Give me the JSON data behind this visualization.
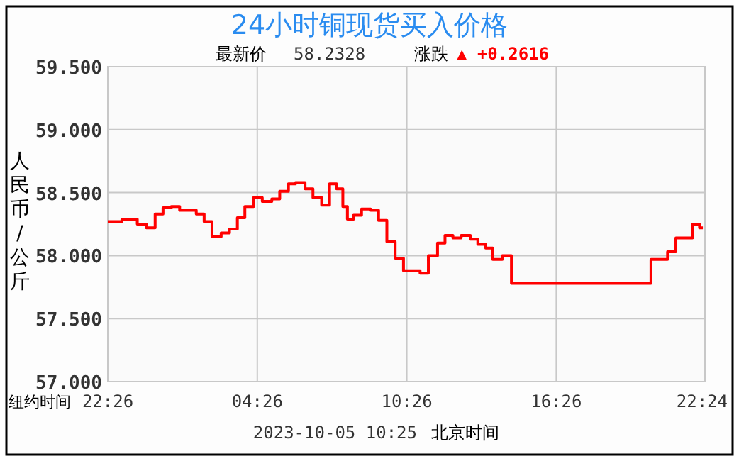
{
  "chart_data": {
    "type": "step",
    "title": "24小时铜现货买入价格",
    "xlabel": "纽约时间",
    "ylabel": "人民币/公斤",
    "annotations": [
      "最新价",
      "58.2328",
      "涨跌",
      "▲ +0.2616",
      "2023-10-05 10:25",
      "北京时间"
    ],
    "x": [
      "2023-10-03T22:26",
      "2023-10-03T23:00",
      "2023-10-03T23:37",
      "2023-10-03T23:59",
      "2023-10-04T00:20",
      "2023-10-04T00:39",
      "2023-10-04T00:59",
      "2023-10-04T01:19",
      "2023-10-04T01:59",
      "2023-10-04T02:18",
      "2023-10-04T02:37",
      "2023-10-04T02:59",
      "2023-10-04T03:19",
      "2023-10-04T03:38",
      "2023-10-04T03:56",
      "2023-10-04T04:17",
      "2023-10-04T04:38",
      "2023-10-04T05:01",
      "2023-10-04T05:20",
      "2023-10-04T05:41",
      "2023-10-04T05:58",
      "2023-10-04T06:21",
      "2023-10-04T06:40",
      "2023-10-04T07:01",
      "2023-10-04T07:20",
      "2023-10-04T07:37",
      "2023-10-04T07:52",
      "2023-10-04T08:03",
      "2023-10-04T08:18",
      "2023-10-04T08:37",
      "2023-10-04T08:59",
      "2023-10-04T09:18",
      "2023-10-04T09:38",
      "2023-10-04T09:58",
      "2023-10-04T10:18",
      "2023-10-04T10:58",
      "2023-10-04T11:18",
      "2023-10-04T11:40",
      "2023-10-04T11:58",
      "2023-10-04T12:17",
      "2023-10-04T12:37",
      "2023-10-04T12:59",
      "2023-10-04T13:17",
      "2023-10-04T13:36",
      "2023-10-04T13:53",
      "2023-10-04T14:16",
      "2023-10-04T14:38",
      "2023-10-04T20:14",
      "2023-10-04T20:54",
      "2023-10-04T21:14",
      "2023-10-04T21:54",
      "2023-10-04T22:11",
      "2023-10-04T22:19"
    ],
    "series": [
      {
        "color": "#ff0000",
        "values": [
          58.27,
          58.29,
          58.25,
          58.22,
          58.33,
          58.38,
          58.39,
          58.36,
          58.33,
          58.27,
          58.15,
          58.18,
          58.21,
          58.3,
          58.39,
          58.46,
          58.43,
          58.45,
          58.51,
          58.57,
          58.58,
          58.53,
          58.46,
          58.4,
          58.57,
          58.53,
          58.39,
          58.29,
          58.32,
          58.37,
          58.36,
          58.28,
          58.11,
          57.98,
          57.88,
          57.86,
          58.0,
          58.1,
          58.16,
          58.14,
          58.16,
          58.13,
          58.09,
          58.06,
          57.97,
          58.0,
          57.78,
          57.97,
          58.03,
          58.14,
          58.25,
          58.22,
          58.22
        ]
      }
    ],
    "xlim": [
      "2023-10-03T22:26",
      "2023-10-04T22:24"
    ],
    "xticks": [
      {
        "value": "2023-10-03T22:26",
        "label": "22:26"
      },
      {
        "value": "2023-10-04T04:26",
        "label": "04:26"
      },
      {
        "value": "2023-10-04T10:26",
        "label": "10:26"
      },
      {
        "value": "2023-10-04T16:26",
        "label": "16:26"
      },
      {
        "value": "2023-10-04T22:24",
        "label": "22:24"
      }
    ],
    "ylim": [
      57,
      59.5
    ],
    "yticks": [
      {
        "value": 57,
        "label": "57.000"
      },
      {
        "value": 57.5,
        "label": "57.500"
      },
      {
        "value": 58,
        "label": "58.000"
      },
      {
        "value": 58.5,
        "label": "58.500"
      },
      {
        "value": 59,
        "label": "59.000"
      },
      {
        "value": 59.5,
        "label": "59.500"
      }
    ],
    "grid": true
  }
}
